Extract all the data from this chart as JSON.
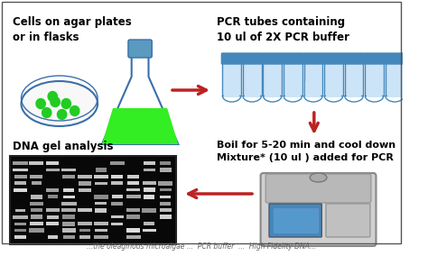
{
  "bg_color": "#ffffff",
  "border_color": "#555555",
  "top_left_title": "Cells on agar plates\nor in flasks",
  "top_right_title": "PCR tubes containing\n10 ul of 2X PCR buffer",
  "bottom_left_title": "DNA gel analysis",
  "bottom_right_title": "Boil for 5-20 min and cool down\nMixture* (10 ul ) added for PCR",
  "arrow_color": "#bb2222",
  "petri_color": "#3a6faa",
  "flask_color": "#3a6faa",
  "flask_fill": "#33ee22",
  "tube_color": "#4488bb",
  "tube_fill": "#cce4f7",
  "gel_bg": "#080808",
  "gel_band_color": "#dddddd",
  "title_fontsize": 8.5,
  "caption_fontsize": 5.5
}
